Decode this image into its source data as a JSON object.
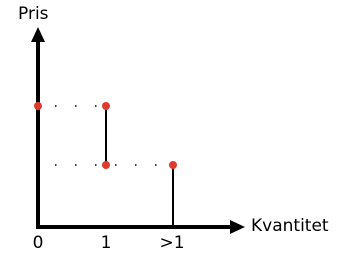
{
  "axes": {
    "y_label": "Pris",
    "x_label": "Kvantitet"
  },
  "x_ticks": [
    "0",
    "1",
    ">1"
  ]
}
